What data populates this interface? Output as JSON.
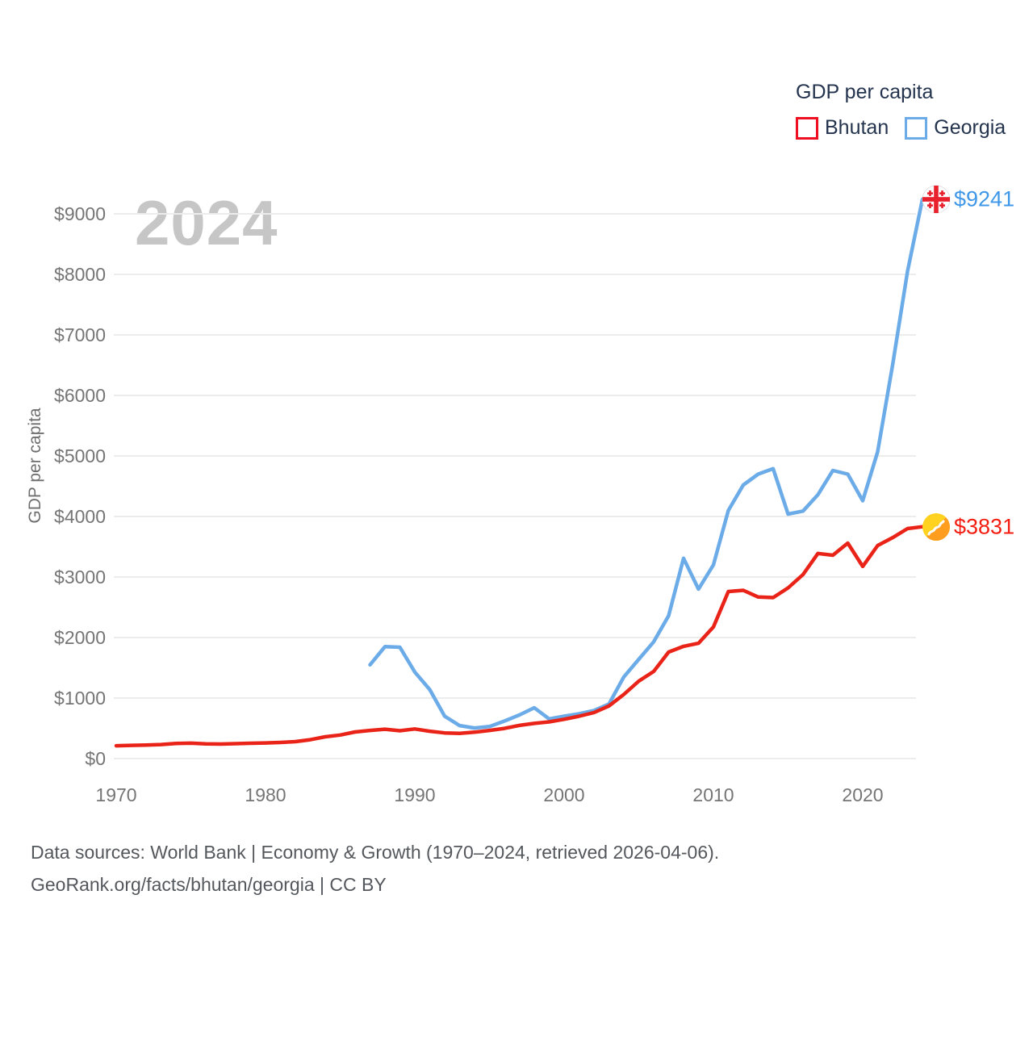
{
  "page": {
    "background": "#ffffff"
  },
  "legend": {
    "title": "GDP per capita",
    "items": [
      {
        "label": "Bhutan",
        "color": "#ee1020"
      },
      {
        "label": "Georgia",
        "color": "#6babe8"
      }
    ]
  },
  "annotations": {
    "georgia_end_value": "$9241",
    "bhutan_end_value": "$3831"
  },
  "chart_data": {
    "type": "line",
    "title": "GDP per capita",
    "watermark": "2024",
    "xlabel": "",
    "ylabel": "GDP per capita",
    "grid": "horizontal",
    "legend_position": "top-right",
    "xlim": [
      1970,
      2024
    ],
    "ylim": [
      0,
      9600
    ],
    "y_tick_prefix": "$",
    "x_ticks": [
      1970,
      1980,
      1990,
      2000,
      2010,
      2020
    ],
    "y_ticks": [
      0,
      1000,
      2000,
      3000,
      4000,
      5000,
      6000,
      7000,
      8000,
      9000
    ],
    "x": [
      1970,
      1971,
      1972,
      1973,
      1974,
      1975,
      1976,
      1977,
      1978,
      1979,
      1980,
      1981,
      1982,
      1983,
      1984,
      1985,
      1986,
      1987,
      1988,
      1989,
      1990,
      1991,
      1992,
      1993,
      1994,
      1995,
      1996,
      1997,
      1998,
      1999,
      2000,
      2001,
      2002,
      2003,
      2004,
      2005,
      2006,
      2007,
      2008,
      2009,
      2010,
      2011,
      2012,
      2013,
      2014,
      2015,
      2016,
      2017,
      2018,
      2019,
      2020,
      2021,
      2022,
      2023,
      2024
    ],
    "series": [
      {
        "name": "Bhutan",
        "color": "#ea2318",
        "label_color": "#f31c10",
        "end_label": "$3831",
        "values": [
          212,
          218,
          224,
          232,
          250,
          255,
          243,
          240,
          247,
          254,
          258,
          266,
          280,
          312,
          360,
          390,
          440,
          465,
          485,
          460,
          490,
          452,
          424,
          416,
          436,
          465,
          498,
          548,
          582,
          606,
          650,
          700,
          760,
          870,
          1060,
          1280,
          1440,
          1760,
          1855,
          1905,
          2175,
          2760,
          2780,
          2670,
          2660,
          2820,
          3040,
          3390,
          3360,
          3560,
          3175,
          3520,
          3650,
          3800,
          3831
        ]
      },
      {
        "name": "Georgia",
        "color": "#6babe8",
        "label_color": "#3f97e8",
        "end_label": "$9241",
        "values": [
          null,
          null,
          null,
          null,
          null,
          null,
          null,
          null,
          null,
          null,
          null,
          null,
          null,
          null,
          null,
          null,
          null,
          1550,
          1850,
          1840,
          1430,
          1140,
          700,
          545,
          505,
          530,
          620,
          720,
          840,
          655,
          700,
          740,
          795,
          900,
          1350,
          1640,
          1930,
          2360,
          3310,
          2800,
          3200,
          4100,
          4520,
          4700,
          4790,
          4040,
          4090,
          4360,
          4760,
          4700,
          4260,
          5070,
          6500,
          8050,
          9241
        ]
      }
    ]
  },
  "footer": {
    "line1": "Data sources: World Bank | Economy & Growth (1970–2024, retrieved 2026-04-06).",
    "line2": "GeoRank.org/facts/bhutan/georgia | CC BY"
  }
}
